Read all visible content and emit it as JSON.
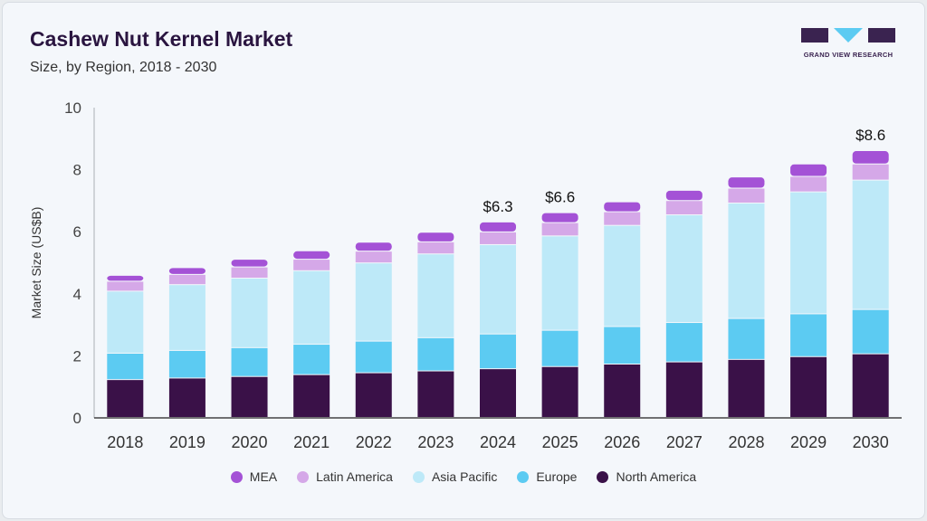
{
  "header": {
    "title": "Cashew Nut Kernel Market",
    "subtitle": "Size, by Region, 2018 - 2030",
    "logo_text": "GRAND VIEW RESEARCH"
  },
  "chart_data": {
    "type": "bar",
    "stacked": true,
    "title": "Cashew Nut Kernel Market",
    "subtitle": "Size, by Region, 2018 - 2030",
    "xlabel": "",
    "ylabel": "Market Size (US$B)",
    "ylim": [
      0,
      10
    ],
    "yticks": [
      0,
      2,
      4,
      6,
      8,
      10
    ],
    "categories": [
      "2018",
      "2019",
      "2020",
      "2021",
      "2022",
      "2023",
      "2024",
      "2025",
      "2026",
      "2027",
      "2028",
      "2029",
      "2030"
    ],
    "series": [
      {
        "name": "North America",
        "color": "#3a1148",
        "values": [
          1.22,
          1.27,
          1.32,
          1.38,
          1.44,
          1.5,
          1.57,
          1.64,
          1.72,
          1.79,
          1.87,
          1.96,
          2.05
        ]
      },
      {
        "name": "Europe",
        "color": "#5ccbf2",
        "values": [
          0.85,
          0.89,
          0.93,
          0.98,
          1.02,
          1.07,
          1.12,
          1.17,
          1.21,
          1.27,
          1.32,
          1.38,
          1.43
        ]
      },
      {
        "name": "Asia Pacific",
        "color": "#bde9f8",
        "values": [
          2.0,
          2.12,
          2.24,
          2.37,
          2.52,
          2.7,
          2.88,
          3.04,
          3.26,
          3.47,
          3.72,
          3.93,
          4.17
        ]
      },
      {
        "name": "Latin America",
        "color": "#d5a8e8",
        "values": [
          0.32,
          0.33,
          0.36,
          0.37,
          0.38,
          0.39,
          0.41,
          0.43,
          0.44,
          0.46,
          0.48,
          0.5,
          0.52
        ]
      },
      {
        "name": "MEA",
        "color": "#a452d6",
        "values": [
          0.19,
          0.22,
          0.25,
          0.27,
          0.29,
          0.31,
          0.32,
          0.32,
          0.32,
          0.33,
          0.36,
          0.4,
          0.43
        ]
      }
    ],
    "annotations": [
      {
        "category": "2024",
        "label": "$6.3"
      },
      {
        "category": "2025",
        "label": "$6.6"
      },
      {
        "category": "2030",
        "label": "$8.6"
      }
    ],
    "legend": {
      "placement": "bottom",
      "order": [
        "MEA",
        "Latin America",
        "Asia Pacific",
        "Europe",
        "North America"
      ]
    }
  }
}
